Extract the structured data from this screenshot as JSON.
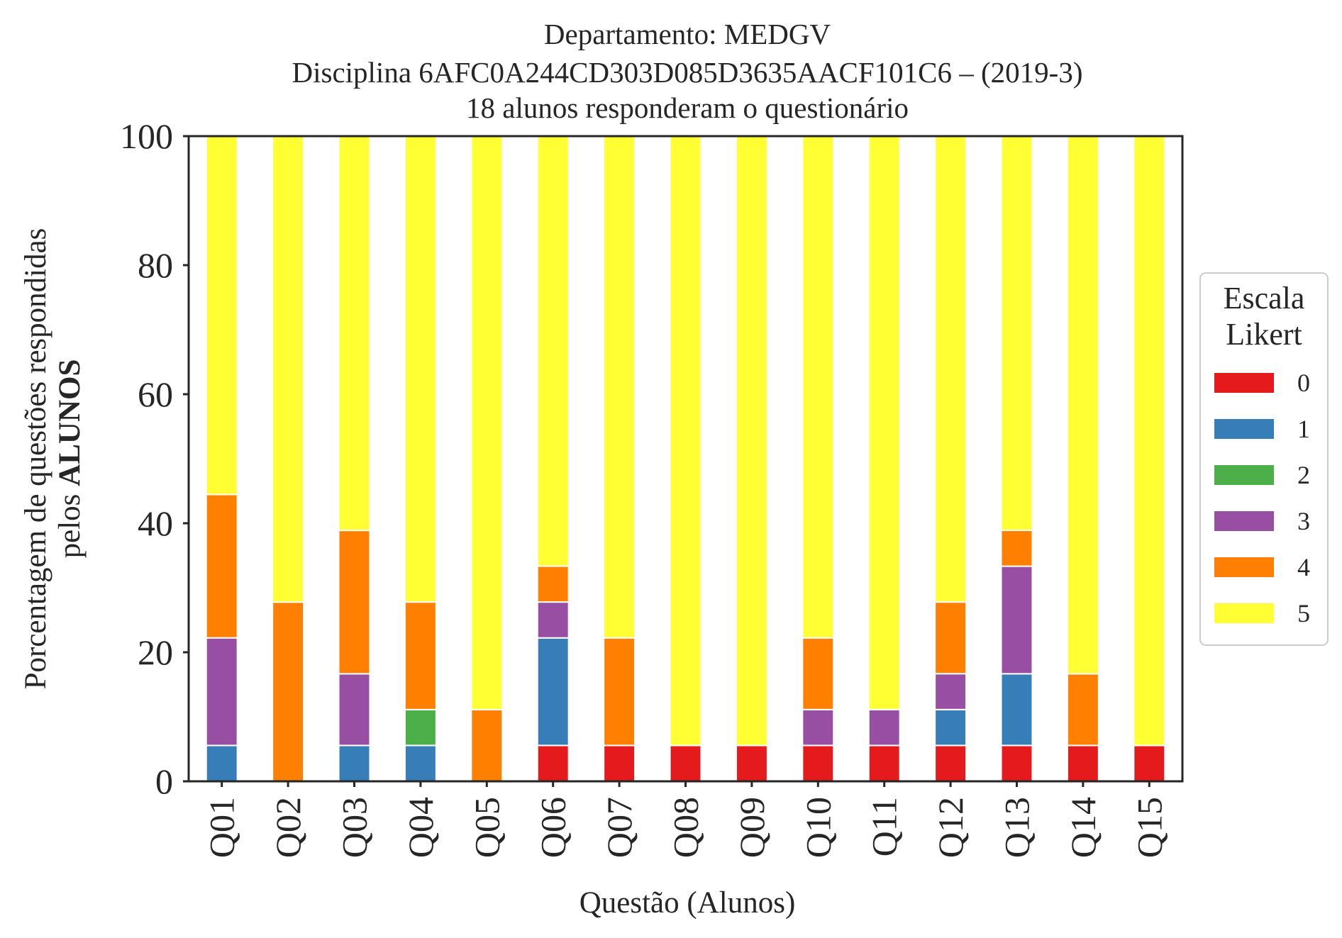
{
  "chart_data": {
    "type": "bar",
    "stacked": true,
    "title_lines": [
      "Departamento: MEDGV",
      "Disciplina 6AFC0A244CD303D085D3635AACF101C6 – (2019-3)",
      "18 alunos responderam o questionário"
    ],
    "xlabel": "Questão (Alunos)",
    "ylabel_line1": "Porcentagem de questões respondidas",
    "ylabel_line2_prefix": "pelos ",
    "ylabel_line2_bold": "ALUNOS",
    "ylim": [
      0,
      100
    ],
    "yticks": [
      "0",
      "20",
      "40",
      "60",
      "80",
      "100"
    ],
    "categories": [
      "Q01",
      "Q02",
      "Q03",
      "Q04",
      "Q05",
      "Q06",
      "Q07",
      "Q08",
      "Q09",
      "Q10",
      "Q11",
      "Q12",
      "Q13",
      "Q14",
      "Q15"
    ],
    "legend": {
      "title_lines": [
        "Escala",
        "Likert"
      ],
      "position": "right"
    },
    "grid": false,
    "series": [
      {
        "name": "0",
        "color": "#e41a1c",
        "values": [
          0,
          0,
          0,
          0,
          0,
          5.56,
          5.56,
          5.56,
          5.56,
          5.56,
          5.56,
          5.56,
          5.56,
          5.56,
          5.56
        ]
      },
      {
        "name": "1",
        "color": "#377eb8",
        "values": [
          5.56,
          0,
          5.56,
          5.56,
          0,
          16.67,
          0,
          0,
          0,
          0,
          0,
          5.56,
          11.11,
          0,
          0
        ]
      },
      {
        "name": "2",
        "color": "#4daf4a",
        "values": [
          0,
          0,
          0,
          5.56,
          0,
          0,
          0,
          0,
          0,
          0,
          0,
          0,
          0,
          0,
          0
        ]
      },
      {
        "name": "3",
        "color": "#984ea3",
        "values": [
          16.67,
          0,
          11.11,
          0,
          0,
          5.56,
          0,
          0,
          0,
          5.56,
          5.56,
          5.56,
          16.67,
          0,
          0
        ]
      },
      {
        "name": "4",
        "color": "#ff7f00",
        "values": [
          22.22,
          27.78,
          22.22,
          16.67,
          11.11,
          5.56,
          16.67,
          0,
          0,
          11.11,
          0,
          11.11,
          5.56,
          11.11,
          0
        ]
      },
      {
        "name": "5",
        "color": "#ffff33",
        "values": [
          55.56,
          72.22,
          61.11,
          72.22,
          88.89,
          66.67,
          77.78,
          94.44,
          94.44,
          77.78,
          88.89,
          72.22,
          61.11,
          83.33,
          94.44
        ]
      }
    ]
  }
}
